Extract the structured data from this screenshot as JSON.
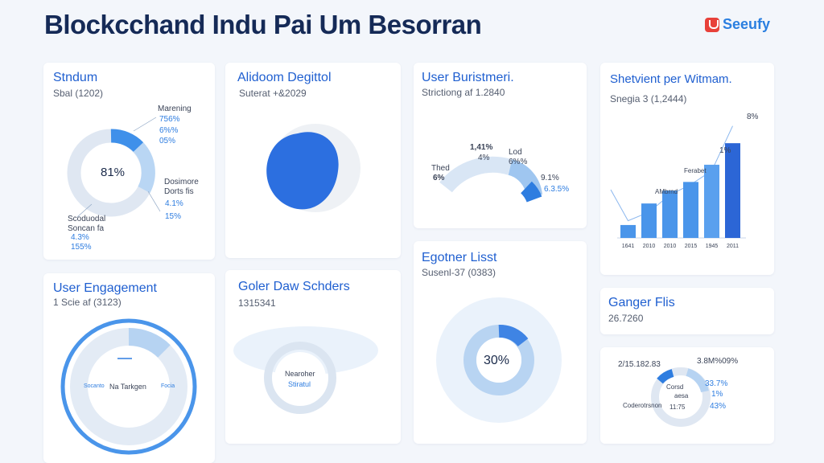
{
  "header": {
    "title": "Blockcchand Indu Pai Um Besorran",
    "brand": "Seeufy"
  },
  "colors": {
    "accent": "#2e7de0",
    "dark_blue": "#1f5fd0",
    "light_blue": "#cfe1f5",
    "brand_red": "#e8413a"
  },
  "cards": {
    "stndum": {
      "title": "Stndum",
      "subtitle": "Sbal (1202)",
      "center": "81%",
      "labels": [
        "Marening",
        "756%",
        "6%%",
        "05%",
        "Dosimore",
        "Dorts fis",
        "4.1%",
        "15%",
        "Scoduodal",
        "Soncan fa",
        "4.3%",
        "155%"
      ]
    },
    "alidoom": {
      "title": "Alidoom Degittol",
      "subtitle": "Suterat +&2029"
    },
    "user_bur": {
      "title": "User Buristmeri.",
      "subtitle": "Strictiong af 1.2840",
      "labels": [
        "1,41%",
        "4%",
        "Thed",
        "6%",
        "Lod",
        "6%%",
        "9.1%",
        "6.3.5%"
      ]
    },
    "shetvient": {
      "title": "Shetvient per Witmam.",
      "subtitle": "Snegia 3 (1,2444)",
      "annotations": [
        "8%",
        "1%",
        "AMbrnd",
        "Ferabet"
      ]
    },
    "user_eng": {
      "title": "User Engagement",
      "subtitle": "1 Scie af (3123)",
      "center": "Na Tarkgen",
      "labels": [
        "Socanto",
        "Focia"
      ]
    },
    "goler": {
      "title": "Goler Daw Schders",
      "subtitle": "1315341",
      "labels": [
        "Nearoher",
        "Stiratul"
      ]
    },
    "egotner": {
      "title": "Egotner Lisst",
      "subtitle": "Susenl-37 (0383)",
      "center": "30%"
    },
    "ganger": {
      "title": "Ganger Flis",
      "value": "26.7260"
    },
    "bottom_right": {
      "labels": [
        "2/15.182.83",
        "3.8M%09%",
        "33.7%",
        "1%",
        "43%",
        "Corsd",
        "aesa",
        "Coderotrsnon",
        "11:75"
      ]
    }
  },
  "chart_data": {
    "type": "bar",
    "title": "Shetvient per Witmam.",
    "categories": [
      "1641",
      "2010",
      "2010",
      "2015",
      "1945",
      "2011"
    ],
    "values": [
      1.5,
      4,
      5.5,
      6.5,
      8.5,
      11
    ],
    "ylim": [
      0,
      14
    ],
    "trend": [
      2,
      3,
      5,
      6.2,
      7.8,
      13
    ]
  }
}
